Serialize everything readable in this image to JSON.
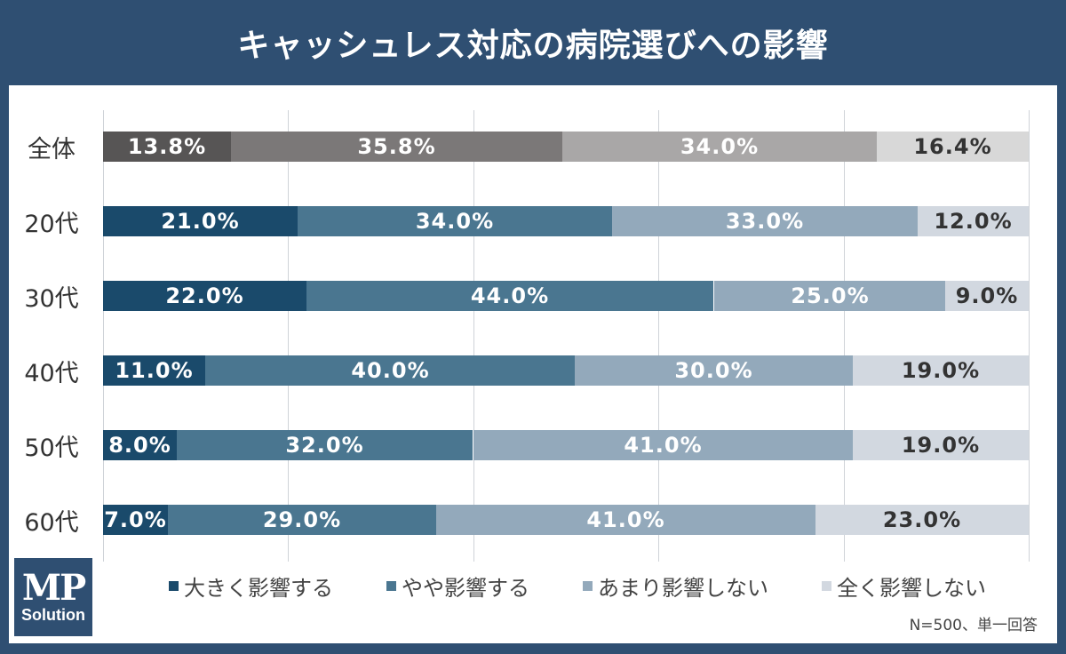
{
  "header": {
    "title": "キャッシュレス対応の病院選びへの影響"
  },
  "note": "N=500、単一回答",
  "logo": {
    "mark": "MP",
    "sub": "Solution"
  },
  "colors": {
    "series": {
      "大きく影響する": "#1a4a6b",
      "やや影響する": "#4a7690",
      "あまり影響しない": "#93a9bb",
      "全く影響しない": "#d2d8e0"
    },
    "overall": [
      "#575555",
      "#7b7878",
      "#a9a7a7",
      "#d8d8d8"
    ]
  },
  "chart_data": {
    "type": "bar",
    "orientation": "horizontal",
    "stacked": true,
    "title": "キャッシュレス対応の病院選びへの影響",
    "categories": [
      "全体",
      "20代",
      "30代",
      "40代",
      "50代",
      "60代"
    ],
    "series": [
      {
        "name": "大きく影響する",
        "values": [
          13.8,
          21.0,
          22.0,
          11.0,
          8.0,
          7.0
        ],
        "labels": [
          "13.8%",
          "21.0%",
          "22.0%",
          "11.0%",
          "8.0%",
          "7.0%"
        ]
      },
      {
        "name": "やや影響する",
        "values": [
          35.8,
          34.0,
          44.0,
          40.0,
          32.0,
          29.0
        ],
        "labels": [
          "35.8%",
          "34.0%",
          "44.0%",
          "40.0%",
          "32.0%",
          "29.0%"
        ]
      },
      {
        "name": "あまり影響しない",
        "values": [
          34.0,
          33.0,
          25.0,
          30.0,
          41.0,
          41.0
        ],
        "labels": [
          "34.0%",
          "33.0%",
          "25.0%",
          "30.0%",
          "41.0%",
          "41.0%"
        ]
      },
      {
        "name": "全く影響しない",
        "values": [
          16.4,
          12.0,
          9.0,
          19.0,
          19.0,
          23.0
        ],
        "labels": [
          "16.4%",
          "12.0%",
          "9.0%",
          "19.0%",
          "19.0%",
          "23.0%"
        ]
      }
    ],
    "xlim": [
      0,
      100
    ],
    "grid": true,
    "legend": "bottom"
  }
}
